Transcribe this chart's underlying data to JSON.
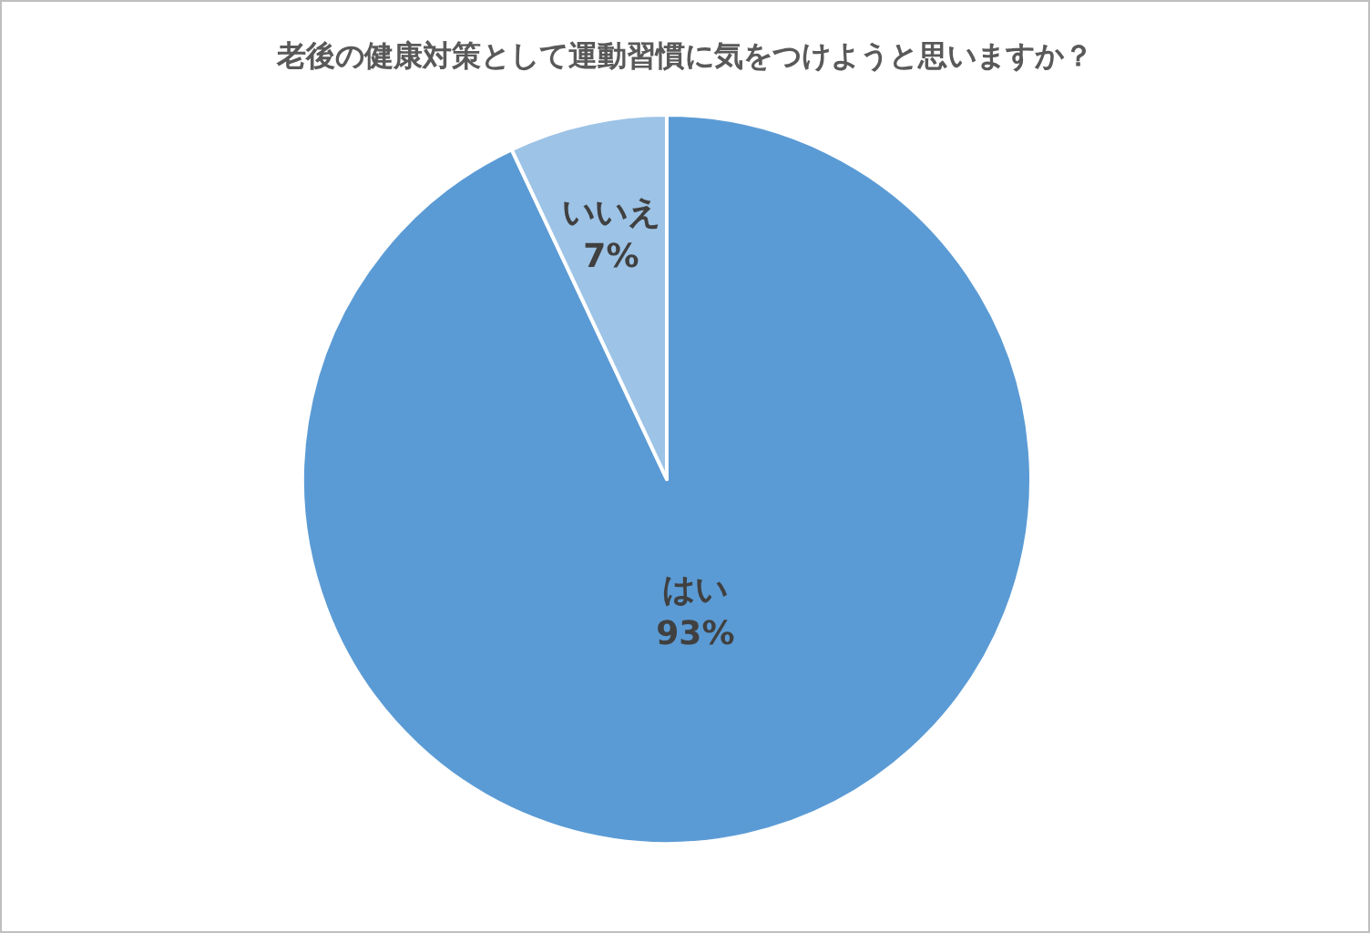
{
  "chart_data": {
    "type": "pie",
    "title": "老後の健康対策として運動習慣に気をつけようと思いますか？",
    "categories": [
      "はい",
      "いいえ"
    ],
    "values": [
      93,
      7
    ],
    "value_labels": [
      "93%",
      "7%"
    ],
    "colors": [
      "#5b9bd5",
      "#9dc3e6"
    ]
  }
}
